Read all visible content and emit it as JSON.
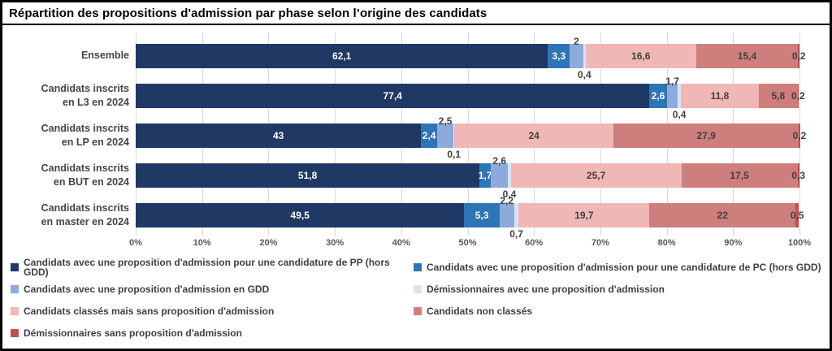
{
  "title": "Répartition des propositions d'admission par phase selon l’origine des candidats",
  "chart_data": {
    "type": "bar",
    "orientation": "horizontal",
    "stacked": true,
    "grid": true,
    "xlim": [
      0,
      100
    ],
    "x_ticks": [
      "0%",
      "10%",
      "20%",
      "30%",
      "40%",
      "50%",
      "60%",
      "70%",
      "80%",
      "90%",
      "100%"
    ],
    "categories": [
      "Ensemble",
      "Candidats inscrits\nen L3 en 2024",
      "Candidats inscrits\nen LP en 2024",
      "Candidats inscrits\nen BUT en 2024",
      "Candidats inscrits\nen master en 2024"
    ],
    "series": [
      {
        "name": "Candidats avec une proposition d'admission pour une candidature de PP (hors GDD)",
        "color": "#1F3864",
        "label_style": "inside-white",
        "values": [
          62.1,
          77.4,
          43,
          51.8,
          49.5
        ]
      },
      {
        "name": "Candidats avec une proposition d'admission pour une candidature de PC (hors GDD)",
        "color": "#2E75B6",
        "label_style": "inside-white",
        "values": [
          3.3,
          2.6,
          2.4,
          1.7,
          5.3
        ]
      },
      {
        "name": "Candidats avec une proposition d'admission en GDD",
        "color": "#8EAADB",
        "label_style": "above",
        "values": [
          2,
          1.7,
          2.5,
          2.6,
          2.2
        ]
      },
      {
        "name": "Démissionnaires avec une proposition d'admission",
        "color": "#DAE3F3",
        "label_style": "below",
        "values": [
          0.4,
          0.4,
          0.1,
          0.4,
          0.7
        ]
      },
      {
        "name": "Candidats classés mais sans proposition d'admission",
        "color": "#EFB7B5",
        "label_style": "inside-dark",
        "values": [
          16.6,
          11.8,
          24,
          25.7,
          19.7
        ]
      },
      {
        "name": "Candidats non classés",
        "color": "#CE7E7C",
        "label_style": "inside-dark",
        "values": [
          15.4,
          5.8,
          27.9,
          17.5,
          22
        ]
      },
      {
        "name": "Démissionnaires sans proposition d'admission",
        "color": "#C0504D",
        "label_style": "inside-dark",
        "values": [
          0.2,
          0.2,
          0.2,
          0.3,
          0.5
        ]
      }
    ],
    "legend_position": "bottom",
    "grid_color": "#D9D9D9",
    "axis_text_color": "#595959",
    "data_label_dark_color": "#404040"
  }
}
